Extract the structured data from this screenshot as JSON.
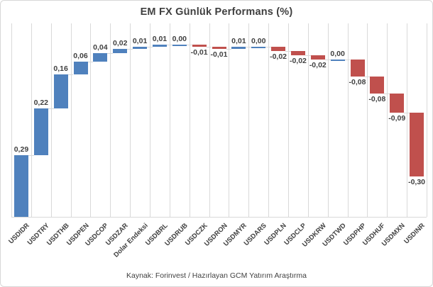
{
  "chart_data": {
    "type": "bar",
    "subtype": "waterfall",
    "title": "EM FX Günlük Performans (%)",
    "categories": [
      "USDIDR",
      "USDTRY",
      "USDTHB",
      "USDPEN",
      "USDCOP",
      "USDZAR",
      "Dolar Endeksi",
      "USDBRL",
      "USDRUB",
      "USDCZK",
      "USDRON",
      "USDMYR",
      "USDARS",
      "USDPLN",
      "USDCLP",
      "USDKRW",
      "USDTWD",
      "USDPHP",
      "USDHUF",
      "USDMXN",
      "USDINR"
    ],
    "values": [
      0.29,
      0.22,
      0.16,
      0.06,
      0.04,
      0.02,
      0.01,
      0.01,
      0.0,
      -0.01,
      -0.01,
      0.01,
      0.0,
      -0.02,
      -0.02,
      -0.02,
      0.0,
      -0.08,
      -0.08,
      -0.09,
      -0.3
    ],
    "value_labels": [
      "0,29",
      "0,22",
      "0,16",
      "0,06",
      "0,04",
      "0,02",
      "0,01",
      "0,01",
      "0,00",
      "-0,01",
      "-0,01",
      "0,01",
      "0,00",
      "-0,02",
      "-0,02",
      "-0,02",
      "0,00",
      "-0,08",
      "-0,08",
      "-0,09",
      "-0,30"
    ],
    "baseline": 0,
    "ylim": [
      0,
      0.91
    ],
    "grid": "vertical-category-gridlines",
    "legend_position": "none",
    "positive_color": "#4F81BD",
    "negative_color": "#C0504D",
    "gridline_color": "#D9D9D9",
    "label_color": "#404040",
    "source_note": "Kaynak: Forinvest / Hazırlayan GCM Yatırım Araştırma"
  }
}
